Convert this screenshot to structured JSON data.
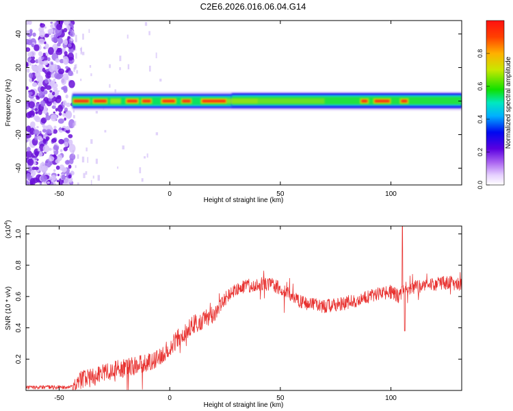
{
  "title": "C2E6.2026.016.06.04.G14",
  "colors": {
    "snr_line": "#e8312f",
    "axis": "#000000",
    "background": "#ffffff"
  },
  "chart_data": [
    {
      "type": "heatmap",
      "name": "spectrogram",
      "xlabel": "Height of straight line (km)",
      "ylabel": "Frequency (Hz)",
      "xlim": [
        -65,
        132
      ],
      "ylim": [
        -50,
        48
      ],
      "xticks": [
        -50,
        0,
        50,
        100
      ],
      "yticks": [
        -40,
        -20,
        0,
        20,
        40
      ],
      "colorbar": {
        "label": "Normalized spectral amplitude",
        "range": [
          0,
          1
        ],
        "ticks": [
          0.0,
          0.2,
          0.4,
          0.6,
          0.8
        ],
        "colormap": [
          "#ffffff",
          "#b27fe6",
          "#6a00d8",
          "#0010e0",
          "#00c8ff",
          "#00e080",
          "#38e000",
          "#d8e000",
          "#ff9000",
          "#ff2000"
        ]
      },
      "band": {
        "center_hz": 0,
        "start_km": -44,
        "description_peaks_km": [
          -40,
          -31,
          -21,
          -12,
          -5,
          0,
          7,
          18,
          28,
          88,
          96,
          106
        ]
      }
    },
    {
      "type": "line",
      "name": "snr",
      "xlabel": "Height of straight line (km)",
      "ylabel": "SNR (10 * v/v)",
      "scale_label": "(x10",
      "scale_exp": "4",
      "xlim": [
        -65,
        132
      ],
      "ylim": [
        0,
        1.05
      ],
      "xticks": [
        -50,
        0,
        50,
        100
      ],
      "yticks": [
        0.2,
        0.4,
        0.6,
        0.8,
        1.0
      ],
      "yticklabels": [
        "0.2",
        "0.4",
        "0.6",
        "0.8",
        "1.0"
      ],
      "trend_points": [
        [
          -65,
          0.02
        ],
        [
          -45,
          0.02
        ],
        [
          -42,
          0.06
        ],
        [
          -35,
          0.08
        ],
        [
          -30,
          0.12
        ],
        [
          -20,
          0.14
        ],
        [
          -10,
          0.18
        ],
        [
          -5,
          0.2
        ],
        [
          0,
          0.28
        ],
        [
          5,
          0.35
        ],
        [
          10,
          0.42
        ],
        [
          15,
          0.45
        ],
        [
          20,
          0.48
        ],
        [
          25,
          0.58
        ],
        [
          30,
          0.65
        ],
        [
          40,
          0.68
        ],
        [
          45,
          0.68
        ],
        [
          50,
          0.65
        ],
        [
          55,
          0.6
        ],
        [
          60,
          0.56
        ],
        [
          65,
          0.55
        ],
        [
          70,
          0.54
        ],
        [
          75,
          0.55
        ],
        [
          80,
          0.56
        ],
        [
          85,
          0.58
        ],
        [
          90,
          0.6
        ],
        [
          95,
          0.62
        ],
        [
          100,
          0.63
        ],
        [
          104,
          0.6
        ],
        [
          106,
          0.65
        ],
        [
          110,
          0.66
        ],
        [
          115,
          0.66
        ],
        [
          120,
          0.68
        ],
        [
          125,
          0.69
        ],
        [
          132,
          0.68
        ]
      ],
      "spikes": [
        [
          105.2,
          1.05
        ],
        [
          106.3,
          0.38
        ]
      ]
    }
  ]
}
